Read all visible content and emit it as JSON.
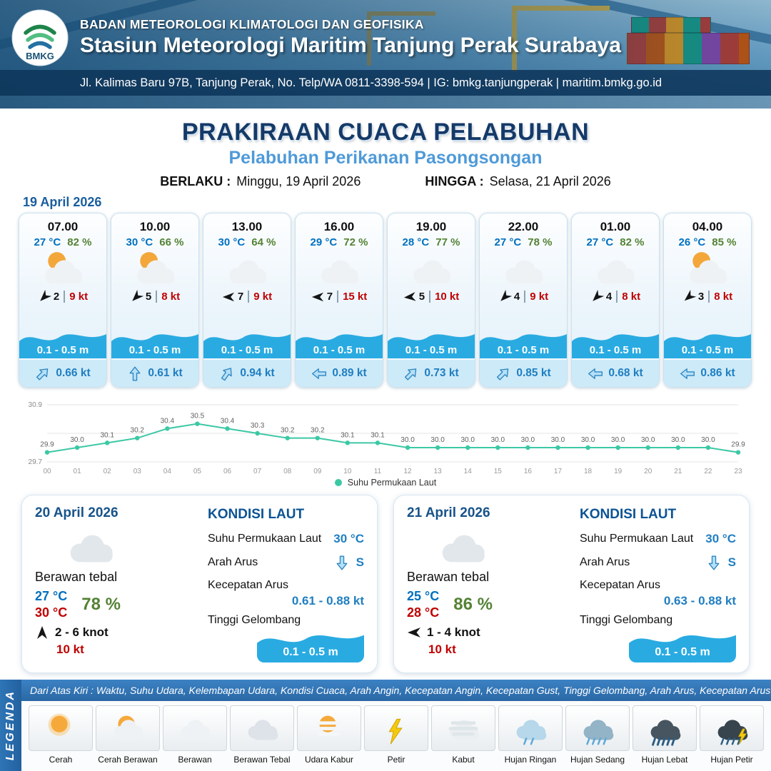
{
  "colors": {
    "temperature": "#0070c0",
    "humidity": "#548235",
    "gust": "#c00000",
    "current": "#1f7ec2",
    "wave": "#29abe2",
    "accent": "#2e75b6",
    "chart_line": "#3cc8a5"
  },
  "header": {
    "logo_text": "BMKG",
    "agency": "BADAN METEOROLOGI KLIMATOLOGI DAN GEOFISIKA",
    "station": "Stasiun Meteorologi Maritim Tanjung Perak Surabaya",
    "contact": "Jl. Kalimas Baru 97B, Tanjung Perak, No. Telp/WA 0811-3398-594 | IG: bmkg.tanjungperak | maritim.bmkg.go.id"
  },
  "title": {
    "main": "PRAKIRAAN CUACA PELABUHAN",
    "subtitle": "Pelabuhan Perikanan Pasongsongan",
    "berlaku_label": "BERLAKU :",
    "berlaku_value": "Minggu, 19 April 2026",
    "hingga_label": "HINGGA :",
    "hingga_value": "Selasa, 21 April 2026"
  },
  "hourly_date": "19 April 2026",
  "hourly": [
    {
      "time": "07.00",
      "temp": "27 °C",
      "humidity": "82 %",
      "icon": "cerah-berawan",
      "wind_speed": "2",
      "gust": "9 kt",
      "wind_dir_deg": 135,
      "wave": "0.1 - 0.5 m",
      "current_speed": "0.66 kt",
      "current_dir_deg": -45
    },
    {
      "time": "10.00",
      "temp": "30 °C",
      "humidity": "66 %",
      "icon": "cerah-berawan",
      "wind_speed": "5",
      "gust": "8 kt",
      "wind_dir_deg": 135,
      "wave": "0.1 - 0.5 m",
      "current_speed": "0.61 kt",
      "current_dir_deg": -90
    },
    {
      "time": "13.00",
      "temp": "30 °C",
      "humidity": "64 %",
      "icon": "berawan",
      "wind_speed": "7",
      "gust": "9 kt",
      "wind_dir_deg": 180,
      "wave": "0.1 - 0.5 m",
      "current_speed": "0.94 kt",
      "current_dir_deg": -55
    },
    {
      "time": "16.00",
      "temp": "29 °C",
      "humidity": "72 %",
      "icon": "berawan",
      "wind_speed": "7",
      "gust": "15 kt",
      "wind_dir_deg": 180,
      "wave": "0.1 - 0.5 m",
      "current_speed": "0.89 kt",
      "current_dir_deg": 180
    },
    {
      "time": "19.00",
      "temp": "28 °C",
      "humidity": "77 %",
      "icon": "berawan",
      "wind_speed": "5",
      "gust": "10 kt",
      "wind_dir_deg": 175,
      "wave": "0.1 - 0.5 m",
      "current_speed": "0.73 kt",
      "current_dir_deg": -45
    },
    {
      "time": "22.00",
      "temp": "27 °C",
      "humidity": "78 %",
      "icon": "berawan",
      "wind_speed": "4",
      "gust": "9 kt",
      "wind_dir_deg": 135,
      "wave": "0.1 - 0.5 m",
      "current_speed": "0.85 kt",
      "current_dir_deg": -45
    },
    {
      "time": "01.00",
      "temp": "27 °C",
      "humidity": "82 %",
      "icon": "berawan",
      "wind_speed": "4",
      "gust": "8 kt",
      "wind_dir_deg": 135,
      "wave": "0.1 - 0.5 m",
      "current_speed": "0.68 kt",
      "current_dir_deg": 180
    },
    {
      "time": "04.00",
      "temp": "26 °C",
      "humidity": "85 %",
      "icon": "cerah-berawan",
      "wind_speed": "3",
      "gust": "8 kt",
      "wind_dir_deg": 140,
      "wave": "0.1 - 0.5 m",
      "current_speed": "0.86 kt",
      "current_dir_deg": 180
    }
  ],
  "chart_data": {
    "type": "line",
    "series_name": "Suhu Permukaan Laut",
    "x": [
      "00",
      "01",
      "02",
      "03",
      "04",
      "05",
      "06",
      "07",
      "08",
      "09",
      "10",
      "11",
      "12",
      "13",
      "14",
      "15",
      "16",
      "17",
      "18",
      "19",
      "20",
      "21",
      "22",
      "23"
    ],
    "values": [
      29.9,
      30.0,
      30.1,
      30.2,
      30.4,
      30.5,
      30.4,
      30.3,
      30.2,
      30.2,
      30.1,
      30.1,
      30.0,
      30.0,
      30.0,
      30.0,
      30.0,
      30.0,
      30.0,
      30.0,
      30.0,
      30.0,
      30.0,
      29.9
    ],
    "ylim": [
      29.7,
      30.9
    ],
    "line_color": "#3cc8a5",
    "grid": true,
    "legend_position": "bottom"
  },
  "daily": [
    {
      "date": "20 April 2026",
      "icon": "berawan-tebal",
      "condition": "Berawan tebal",
      "temp_min": "27 °C",
      "temp_max": "30 °C",
      "humidity": "78 %",
      "wind_dir_deg": -90,
      "wind_range": "2 - 6 knot",
      "gust": "10 kt",
      "sea": {
        "title": "KONDISI LAUT",
        "sst_label": "Suhu Permukaan Laut",
        "sst": "30 °C",
        "arah_label": "Arah Arus",
        "arah": "S",
        "arah_dir_deg": 90,
        "kecepatan_label": "Kecepatan Arus",
        "kecepatan": "0.61 - 0.88 kt",
        "gelombang_label": "Tinggi Gelombang",
        "gelombang": "0.1 - 0.5 m"
      }
    },
    {
      "date": "21 April 2026",
      "icon": "berawan-tebal",
      "condition": "Berawan tebal",
      "temp_min": "25 °C",
      "temp_max": "28 °C",
      "humidity": "86 %",
      "wind_dir_deg": 180,
      "wind_range": "1 - 4 knot",
      "gust": "10 kt",
      "sea": {
        "title": "KONDISI LAUT",
        "sst_label": "Suhu Permukaan Laut",
        "sst": "30 °C",
        "arah_label": "Arah Arus",
        "arah": "S",
        "arah_dir_deg": 90,
        "kecepatan_label": "Kecepatan Arus",
        "kecepatan": "0.63 - 0.88 kt",
        "gelombang_label": "Tinggi Gelombang",
        "gelombang": "0.1 - 0.5 m"
      }
    }
  ],
  "legend": {
    "title": "LEGENDA",
    "description": "Dari Atas Kiri : Waktu, Suhu Udara, Kelembapan Udara, Kondisi Cuaca, Arah Angin, Kecepatan Angin, Kecepatan Gust, Tinggi Gelombang, Arah Arus, Kecepatan Arus",
    "items": [
      {
        "icon": "cerah",
        "label": "Cerah"
      },
      {
        "icon": "cerah-berawan",
        "label": "Cerah Berawan"
      },
      {
        "icon": "berawan",
        "label": "Berawan"
      },
      {
        "icon": "berawan-tebal",
        "label": "Berawan Tebal"
      },
      {
        "icon": "udara-kabur",
        "label": "Udara Kabur"
      },
      {
        "icon": "petir",
        "label": "Petir"
      },
      {
        "icon": "kabut",
        "label": "Kabut"
      },
      {
        "icon": "hujan-ringan",
        "label": "Hujan Ringan"
      },
      {
        "icon": "hujan-sedang",
        "label": "Hujan Sedang"
      },
      {
        "icon": "hujan-lebat",
        "label": "Hujan Lebat"
      },
      {
        "icon": "hujan-petir",
        "label": "Hujan Petir"
      }
    ]
  }
}
